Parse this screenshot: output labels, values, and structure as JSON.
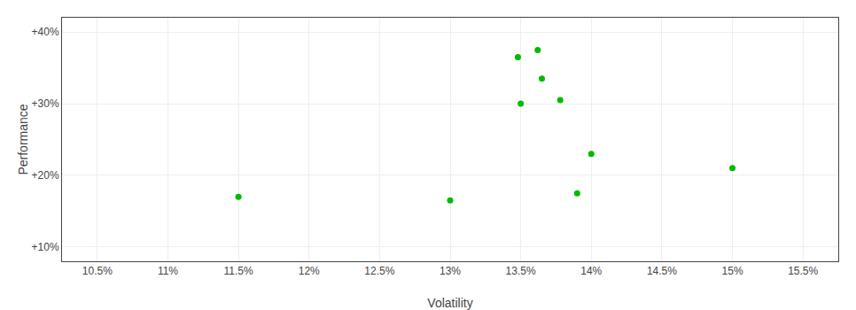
{
  "chart_data": {
    "type": "scatter",
    "xlabel": "Volatility",
    "ylabel": "Performance",
    "x": [
      11.5,
      13.0,
      13.5,
      13.48,
      13.62,
      13.65,
      13.78,
      13.9,
      14.0,
      15.0
    ],
    "values": [
      17.0,
      16.5,
      30.0,
      36.5,
      37.5,
      33.5,
      30.5,
      17.5,
      23.0,
      21.0
    ],
    "color": "#00bb00",
    "xlim": [
      10.25,
      15.75
    ],
    "ylim": [
      8,
      42
    ],
    "xticks": [
      {
        "value": 10.5,
        "label": "10.5%"
      },
      {
        "value": 11.0,
        "label": "11%"
      },
      {
        "value": 11.5,
        "label": "11.5%"
      },
      {
        "value": 12.0,
        "label": "12%"
      },
      {
        "value": 12.5,
        "label": "12.5%"
      },
      {
        "value": 13.0,
        "label": "13%"
      },
      {
        "value": 13.5,
        "label": "13.5%"
      },
      {
        "value": 14.0,
        "label": "14%"
      },
      {
        "value": 14.5,
        "label": "14.5%"
      },
      {
        "value": 15.0,
        "label": "15%"
      },
      {
        "value": 15.5,
        "label": "15.5%"
      }
    ],
    "yticks": [
      {
        "value": 10,
        "label": "+10%"
      },
      {
        "value": 20,
        "label": "+20%"
      },
      {
        "value": 30,
        "label": "+30%"
      },
      {
        "value": 40,
        "label": "+40%"
      }
    ],
    "grid": true
  }
}
